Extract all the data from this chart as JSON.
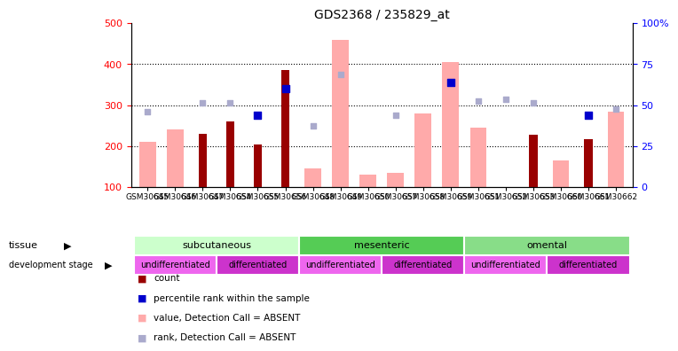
{
  "title": "GDS2368 / 235829_at",
  "samples": [
    "GSM30645",
    "GSM30646",
    "GSM30647",
    "GSM30654",
    "GSM30655",
    "GSM30656",
    "GSM30648",
    "GSM30649",
    "GSM30650",
    "GSM30657",
    "GSM30658",
    "GSM30659",
    "GSM30651",
    "GSM30652",
    "GSM30653",
    "GSM30660",
    "GSM30661",
    "GSM30662"
  ],
  "count_values": [
    null,
    null,
    230,
    260,
    205,
    385,
    null,
    null,
    null,
    null,
    null,
    null,
    null,
    null,
    228,
    null,
    218,
    null
  ],
  "rank_values": [
    null,
    null,
    null,
    null,
    275,
    340,
    null,
    null,
    null,
    null,
    null,
    355,
    null,
    null,
    null,
    null,
    275,
    null
  ],
  "absent_value": [
    210,
    240,
    null,
    null,
    null,
    null,
    145,
    460,
    130,
    135,
    280,
    405,
    245,
    null,
    null,
    165,
    null,
    285
  ],
  "absent_rank": [
    285,
    null,
    305,
    305,
    null,
    null,
    250,
    375,
    null,
    275,
    null,
    null,
    310,
    315,
    305,
    null,
    null,
    290
  ],
  "ylim_left": [
    100,
    500
  ],
  "ylim_right": [
    0,
    100
  ],
  "yticks_left": [
    100,
    200,
    300,
    400,
    500
  ],
  "yticks_right": [
    0,
    25,
    50,
    75,
    100
  ],
  "tissue_groups": [
    {
      "label": "subcutaneous",
      "start": 0,
      "end": 6,
      "color": "#ccffcc"
    },
    {
      "label": "mesenteric",
      "start": 6,
      "end": 12,
      "color": "#55cc55"
    },
    {
      "label": "omental",
      "start": 12,
      "end": 18,
      "color": "#88dd88"
    }
  ],
  "dev_groups": [
    {
      "label": "undifferentiated",
      "start": 0,
      "end": 3,
      "color": "#ee66ee"
    },
    {
      "label": "differentiated",
      "start": 3,
      "end": 6,
      "color": "#cc33cc"
    },
    {
      "label": "undifferentiated",
      "start": 6,
      "end": 9,
      "color": "#ee66ee"
    },
    {
      "label": "differentiated",
      "start": 9,
      "end": 12,
      "color": "#cc33cc"
    },
    {
      "label": "undifferentiated",
      "start": 12,
      "end": 15,
      "color": "#ee66ee"
    },
    {
      "label": "differentiated",
      "start": 15,
      "end": 18,
      "color": "#cc33cc"
    }
  ],
  "count_color": "#990000",
  "rank_color": "#0000cc",
  "absent_value_color": "#ffaaaa",
  "absent_rank_color": "#aaaacc"
}
